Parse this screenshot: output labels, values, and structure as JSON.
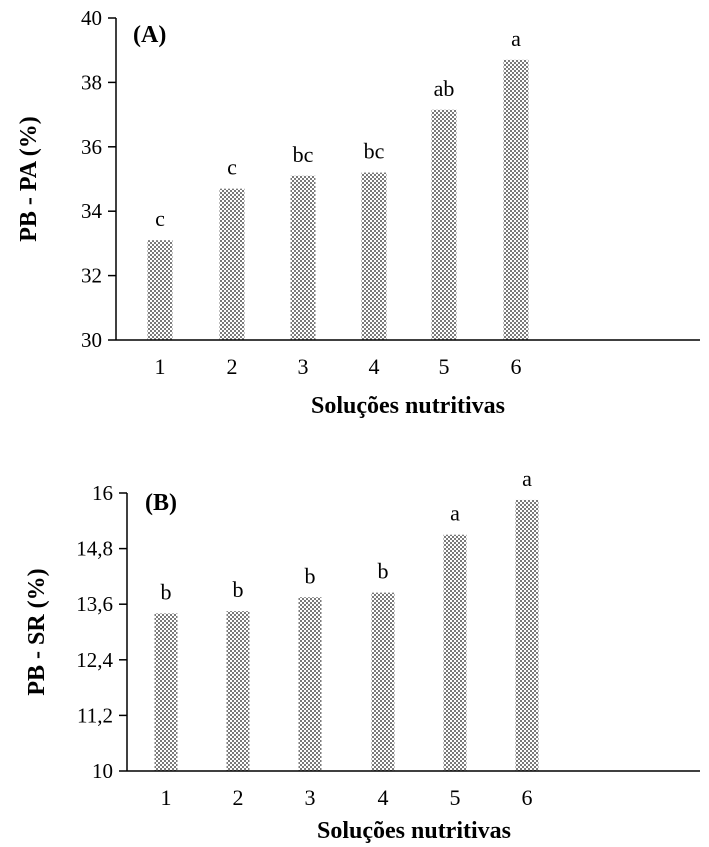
{
  "chart_data": [
    {
      "type": "bar",
      "panel_label": "(A)",
      "categories": [
        "1",
        "2",
        "3",
        "4",
        "5",
        "6"
      ],
      "values": [
        33.1,
        34.7,
        35.1,
        35.2,
        37.15,
        38.7
      ],
      "significance_letters": [
        "c",
        "c",
        "bc",
        "bc",
        "ab",
        "a"
      ],
      "xlabel": "Soluções nutritivas",
      "ylabel": "PB - PA (%)",
      "ylim": [
        30,
        40
      ],
      "yticks": [
        "30",
        "32",
        "34",
        "36",
        "38",
        "40"
      ],
      "ytick_values": [
        30,
        32,
        34,
        36,
        38,
        40
      ],
      "grid": false,
      "bar_fill": "#9a9a9a"
    },
    {
      "type": "bar",
      "panel_label": "(B)",
      "categories": [
        "1",
        "2",
        "3",
        "4",
        "5",
        "6"
      ],
      "values": [
        13.4,
        13.45,
        13.75,
        13.85,
        15.1,
        15.85
      ],
      "significance_letters": [
        "b",
        "b",
        "b",
        "b",
        "a",
        "a"
      ],
      "xlabel": "Soluções nutritivas",
      "ylabel": "PB - SR (%)",
      "ylim": [
        10,
        16
      ],
      "yticks": [
        "10",
        "11,2",
        "12,4",
        "13,6",
        "14,8",
        "16"
      ],
      "ytick_values": [
        10,
        11.2,
        12.4,
        13.6,
        14.8,
        16
      ],
      "grid": false,
      "bar_fill": "#9a9a9a"
    }
  ]
}
